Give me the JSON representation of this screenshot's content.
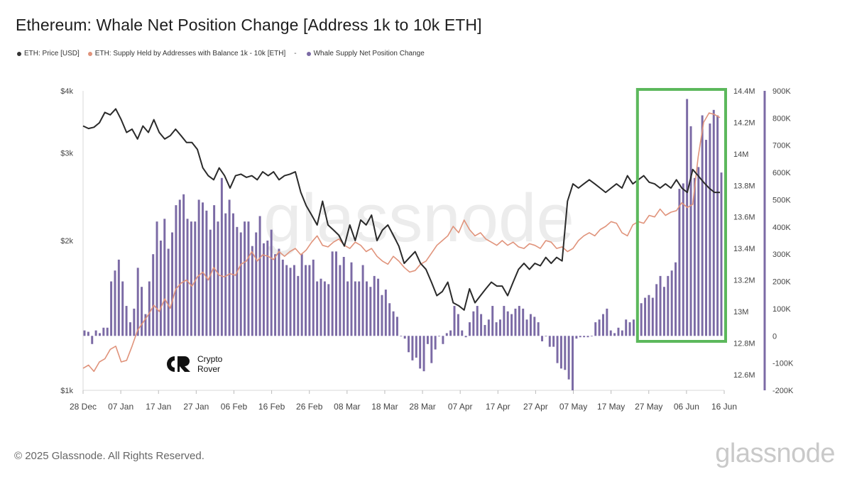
{
  "chart_data": {
    "type": "bar+line",
    "title": "Ethereum: Whale Net Position Change [Address 1k to 10k ETH]",
    "legend": [
      {
        "name": "ETH: Price [USD]",
        "color": "#333333"
      },
      {
        "name": "ETH: Supply Held by Addresses with Balance 1k - 10k [ETH]",
        "color": "#e0937b"
      },
      {
        "name": "Whale Supply Net Position Change",
        "color": "#7b6aa5",
        "separator": "-"
      }
    ],
    "x_ticks": [
      "28 Dec",
      "07 Jan",
      "17 Jan",
      "27 Jan",
      "06 Feb",
      "16 Feb",
      "26 Feb",
      "08 Mar",
      "18 Mar",
      "28 Mar",
      "07 Apr",
      "17 Apr",
      "27 Apr",
      "07 May",
      "17 May",
      "27 May",
      "06 Jun",
      "16 Jun"
    ],
    "x_range": [
      "2024-12-28",
      "2025-06-16"
    ],
    "y_left": {
      "label": "ETH: Price [USD]",
      "scale": "log",
      "range": [
        1000,
        4000
      ],
      "ticks": [
        "$1k",
        "$2k",
        "$3k",
        "$4k"
      ],
      "tick_values": [
        1000,
        2000,
        3000,
        4000
      ]
    },
    "y_mid": {
      "label": "Supply Held",
      "range": [
        12500000,
        14400000
      ],
      "ticks": [
        "12.6M",
        "12.8M",
        "13M",
        "13.2M",
        "13.4M",
        "13.6M",
        "13.8M",
        "14M",
        "14.2M",
        "14.4M"
      ],
      "tick_values": [
        12600000,
        12800000,
        13000000,
        13200000,
        13400000,
        13600000,
        13800000,
        14000000,
        14200000,
        14400000
      ]
    },
    "y_right": {
      "label": "Whale Supply Net Position Change",
      "range": [
        -200000,
        900000
      ],
      "ticks": [
        "-200K",
        "-100K",
        "0",
        "100K",
        "200K",
        "300K",
        "400K",
        "500K",
        "600K",
        "700K",
        "800K",
        "900K"
      ],
      "tick_values": [
        -200000,
        -100000,
        0,
        100000,
        200000,
        300000,
        400000,
        500000,
        600000,
        700000,
        800000,
        900000
      ]
    },
    "price_series": [
      3400,
      3360,
      3380,
      3450,
      3620,
      3580,
      3680,
      3500,
      3300,
      3350,
      3200,
      3400,
      3300,
      3500,
      3300,
      3200,
      3250,
      3350,
      3250,
      3150,
      3150,
      3050,
      2800,
      2700,
      2650,
      2800,
      2700,
      2550,
      2700,
      2720,
      2680,
      2700,
      2650,
      2750,
      2700,
      2750,
      2650,
      2700,
      2720,
      2750,
      2500,
      2350,
      2250,
      2150,
      2400,
      2150,
      2100,
      2050,
      1950,
      2150,
      2000,
      2200,
      2150,
      2250,
      2000,
      2100,
      2150,
      2050,
      1950,
      1800,
      1850,
      1900,
      1800,
      1750,
      1650,
      1550,
      1580,
      1650,
      1500,
      1480,
      1450,
      1600,
      1500,
      1550,
      1600,
      1650,
      1620,
      1620,
      1550,
      1650,
      1750,
      1800,
      1750,
      1800,
      1780,
      1850,
      1800,
      1850,
      1820,
      2400,
      2600,
      2550,
      2600,
      2650,
      2600,
      2550,
      2500,
      2550,
      2600,
      2550,
      2700,
      2600,
      2650,
      2700,
      2620,
      2600,
      2550,
      2600,
      2550,
      2650,
      2550,
      2500,
      2780,
      2700,
      2620,
      2550,
      2500,
      2500
    ],
    "supply_series": [
      12640000,
      12660000,
      12620000,
      12680000,
      12700000,
      12760000,
      12780000,
      12680000,
      12690000,
      12780000,
      12880000,
      12930000,
      12980000,
      13040000,
      13000000,
      13080000,
      13020000,
      13140000,
      13180000,
      13200000,
      13160000,
      13220000,
      13250000,
      13200000,
      13280000,
      13230000,
      13220000,
      13240000,
      13230000,
      13300000,
      13320000,
      13380000,
      13320000,
      13360000,
      13350000,
      13330000,
      13380000,
      13350000,
      13380000,
      13400000,
      13360000,
      13390000,
      13440000,
      13480000,
      13420000,
      13410000,
      13440000,
      13460000,
      13420000,
      13400000,
      13440000,
      13420000,
      13380000,
      13400000,
      13350000,
      13320000,
      13300000,
      13350000,
      13320000,
      13280000,
      13250000,
      13260000,
      13300000,
      13320000,
      13370000,
      13420000,
      13450000,
      13480000,
      13540000,
      13500000,
      13580000,
      13520000,
      13480000,
      13500000,
      13460000,
      13440000,
      13420000,
      13450000,
      13420000,
      13440000,
      13410000,
      13400000,
      13430000,
      13420000,
      13400000,
      13450000,
      13440000,
      13400000,
      13410000,
      13380000,
      13400000,
      13450000,
      13480000,
      13500000,
      13480000,
      13520000,
      13540000,
      13570000,
      13560000,
      13500000,
      13480000,
      13550000,
      13570000,
      13560000,
      13610000,
      13600000,
      13650000,
      13610000,
      13630000,
      13640000,
      13690000,
      13660000,
      13680000,
      13980000,
      14200000,
      14260000,
      14250000,
      14230000
    ],
    "net_change_series": [
      20000,
      15000,
      -30000,
      20000,
      10000,
      30000,
      30000,
      200000,
      240000,
      280000,
      200000,
      110000,
      50000,
      100000,
      250000,
      180000,
      80000,
      200000,
      300000,
      420000,
      350000,
      430000,
      320000,
      380000,
      480000,
      500000,
      520000,
      430000,
      420000,
      420000,
      500000,
      490000,
      460000,
      390000,
      480000,
      420000,
      580000,
      450000,
      500000,
      450000,
      400000,
      380000,
      420000,
      420000,
      330000,
      380000,
      440000,
      340000,
      350000,
      390000,
      300000,
      320000,
      280000,
      260000,
      250000,
      260000,
      220000,
      300000,
      260000,
      260000,
      280000,
      200000,
      210000,
      200000,
      190000,
      310000,
      310000,
      260000,
      290000,
      200000,
      270000,
      200000,
      200000,
      260000,
      200000,
      180000,
      220000,
      210000,
      150000,
      170000,
      120000,
      90000,
      70000,
      0,
      -10000,
      -60000,
      -90000,
      -80000,
      -120000,
      -130000,
      -30000,
      -100000,
      -50000,
      0,
      -30000,
      10000,
      20000,
      110000,
      80000,
      20000,
      -5000,
      50000,
      90000,
      110000,
      80000,
      40000,
      60000,
      110000,
      50000,
      60000,
      110000,
      90000,
      80000,
      100000,
      110000,
      100000,
      60000,
      80000,
      70000,
      50000,
      -20000,
      0,
      -40000,
      -40000,
      -100000,
      -120000,
      -125000,
      -160000,
      -200000,
      -10000,
      -5000,
      -5000,
      -5000,
      0,
      50000,
      60000,
      80000,
      100000,
      20000,
      10000,
      30000,
      20000,
      60000,
      50000,
      60000,
      110000,
      120000,
      140000,
      150000,
      140000,
      190000,
      220000,
      180000,
      220000,
      240000,
      270000,
      540000,
      560000,
      870000,
      770000,
      580000,
      620000,
      810000,
      720000,
      780000,
      830000,
      810000,
      600000
    ]
  },
  "watermark": "glassnode",
  "highlight": {
    "from": "2025-05-24",
    "to": "2025-06-16",
    "color": "#5cb85c"
  },
  "brand_badge": {
    "line1": "Crypto",
    "line2": "Rover"
  },
  "footer": {
    "copyright": "© 2025 Glassnode. All Rights Reserved.",
    "logo_text": "glassnode"
  }
}
